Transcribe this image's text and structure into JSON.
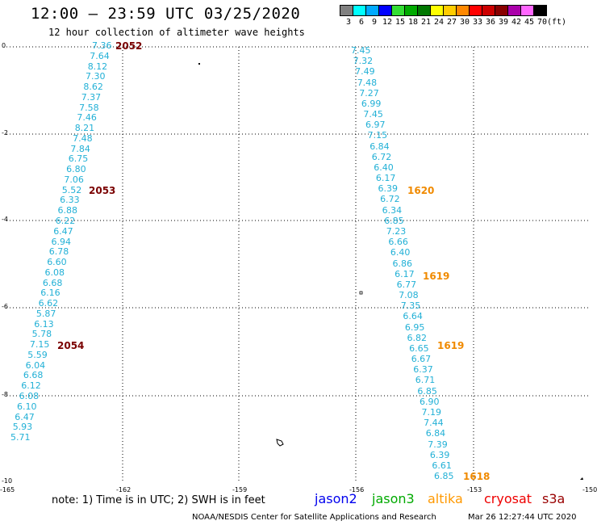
{
  "header": {
    "title": "12:00 – 23:59 UTC 03/25/2020",
    "subtitle": "12 hour collection of altimeter wave heights"
  },
  "legend": {
    "unit": "(ft)",
    "swatches": [
      {
        "label": "3",
        "color": "#808080"
      },
      {
        "label": "6",
        "color": "#00ffff"
      },
      {
        "label": "9",
        "color": "#00aaff"
      },
      {
        "label": "12",
        "color": "#0000ff"
      },
      {
        "label": "15",
        "color": "#33dd33"
      },
      {
        "label": "18",
        "color": "#00aa00"
      },
      {
        "label": "21",
        "color": "#007700"
      },
      {
        "label": "24",
        "color": "#ffff00"
      },
      {
        "label": "27",
        "color": "#ffcc00"
      },
      {
        "label": "30",
        "color": "#ff8800"
      },
      {
        "label": "33",
        "color": "#ff0000"
      },
      {
        "label": "36",
        "color": "#cc0000"
      },
      {
        "label": "39",
        "color": "#880000"
      },
      {
        "label": "42",
        "color": "#aa00aa"
      },
      {
        "label": "45",
        "color": "#ff66ff"
      },
      {
        "label": "70",
        "color": "#000000"
      }
    ]
  },
  "axes": {
    "x_ticks": [
      "-165",
      "-162",
      "-159",
      "-156",
      "-153",
      "-150"
    ],
    "y_ticks": [
      "0",
      "-2",
      "-4",
      "-6",
      "-8",
      "-10"
    ]
  },
  "colors": {
    "jason3_heights": "#22b0d6",
    "pass_jason3": "#7a0000",
    "pass_altika": "#f08a00",
    "grid": "#000000"
  },
  "track_left": {
    "heights": [
      "7.36",
      "7.64",
      "8.12",
      "7.30",
      "8.62",
      "7.37",
      "7.58",
      "7.46",
      "8.21",
      "7.48",
      "7.84",
      "6.75",
      "6.80",
      "7.06",
      "5.52",
      "6.33",
      "6.88",
      "6.22",
      "6.47",
      "6.94",
      "6.78",
      "6.60",
      "6.08",
      "6.68",
      "6.16",
      "6.62",
      "5.87",
      "6.13",
      "5.78",
      "7.15",
      "5.59",
      "6.04",
      "6.68",
      "6.12",
      "6.08",
      "6.10",
      "6.47",
      "5.93",
      "5.71"
    ],
    "passes": [
      "2052",
      "2053",
      "2054"
    ]
  },
  "track_right": {
    "heights": [
      "7.45",
      "7.32",
      "7.49",
      "7.48",
      "7.27",
      "6.99",
      "7.45",
      "6.97",
      "7.15",
      "6.84",
      "6.72",
      "6.40",
      "6.17",
      "6.39",
      "6.72",
      "6.34",
      "6.85",
      "7.23",
      "6.66",
      "6.40",
      "6.86",
      "6.17",
      "6.77",
      "7.08",
      "7.35",
      "6.64",
      "6.95",
      "6.82",
      "6.65",
      "6.67",
      "6.37",
      "6.71",
      "6.85",
      "6.90",
      "7.19",
      "7.44",
      "6.84",
      "7.39",
      "6.39",
      "6.61",
      "6.85"
    ],
    "passes": [
      "1620",
      "1619",
      "1619",
      "1618"
    ]
  },
  "bottom": {
    "note": "note: 1) Time is in UTC; 2) SWH is in feet",
    "satellites": [
      {
        "name": "jason2",
        "color": "#0000ee"
      },
      {
        "name": "jason3",
        "color": "#00aa00"
      },
      {
        "name": "altika",
        "color": "#ff9900"
      },
      {
        "name": "cryosat",
        "color": "#ee0000"
      },
      {
        "name": "s3a",
        "color": "#990000"
      }
    ],
    "credit": "NOAA/NESDIS Center for Satellite Applications and Research",
    "timestamp": "Mar 26 12:27:44 UTC 2020"
  }
}
